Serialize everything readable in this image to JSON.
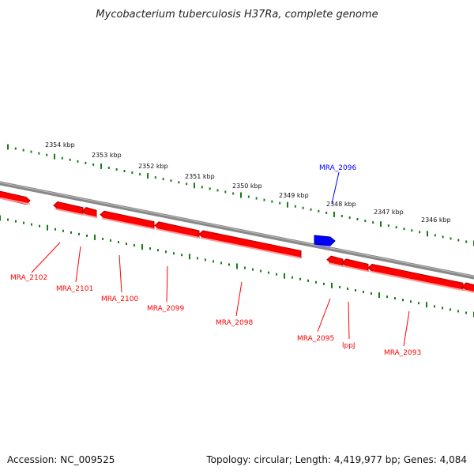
{
  "title": "Mycobacterium tuberculosis H37Ra, complete genome",
  "footer": {
    "accession": "Accession: NC_009525",
    "summary": "Topology: circular; Length: 4,419,977 bp; Genes: 4,084"
  },
  "colors": {
    "reverse_strand": "#ff0000",
    "forward_strand": "#0000ff",
    "backbone": "#888888",
    "tick": "#1a7a1a"
  },
  "kbp_labels": [
    "2354 kbp",
    "2353 kbp",
    "2352 kbp",
    "2351 kbp",
    "2350 kbp",
    "2349 kbp",
    "2348 kbp",
    "2347 kbp",
    "2346 kbp"
  ],
  "genes": [
    {
      "name": "MRA_2102",
      "strand": "reverse"
    },
    {
      "name": "MRA_2101",
      "strand": "reverse"
    },
    {
      "name": "MRA_2100",
      "strand": "reverse"
    },
    {
      "name": "MRA_2099",
      "strand": "reverse"
    },
    {
      "name": "MRA_2098",
      "strand": "reverse"
    },
    {
      "name": "MRA_2096",
      "strand": "forward"
    },
    {
      "name": "MRA_2095",
      "strand": "reverse"
    },
    {
      "name": "lppJ",
      "strand": "reverse"
    },
    {
      "name": "MRA_2093",
      "strand": "reverse"
    }
  ]
}
